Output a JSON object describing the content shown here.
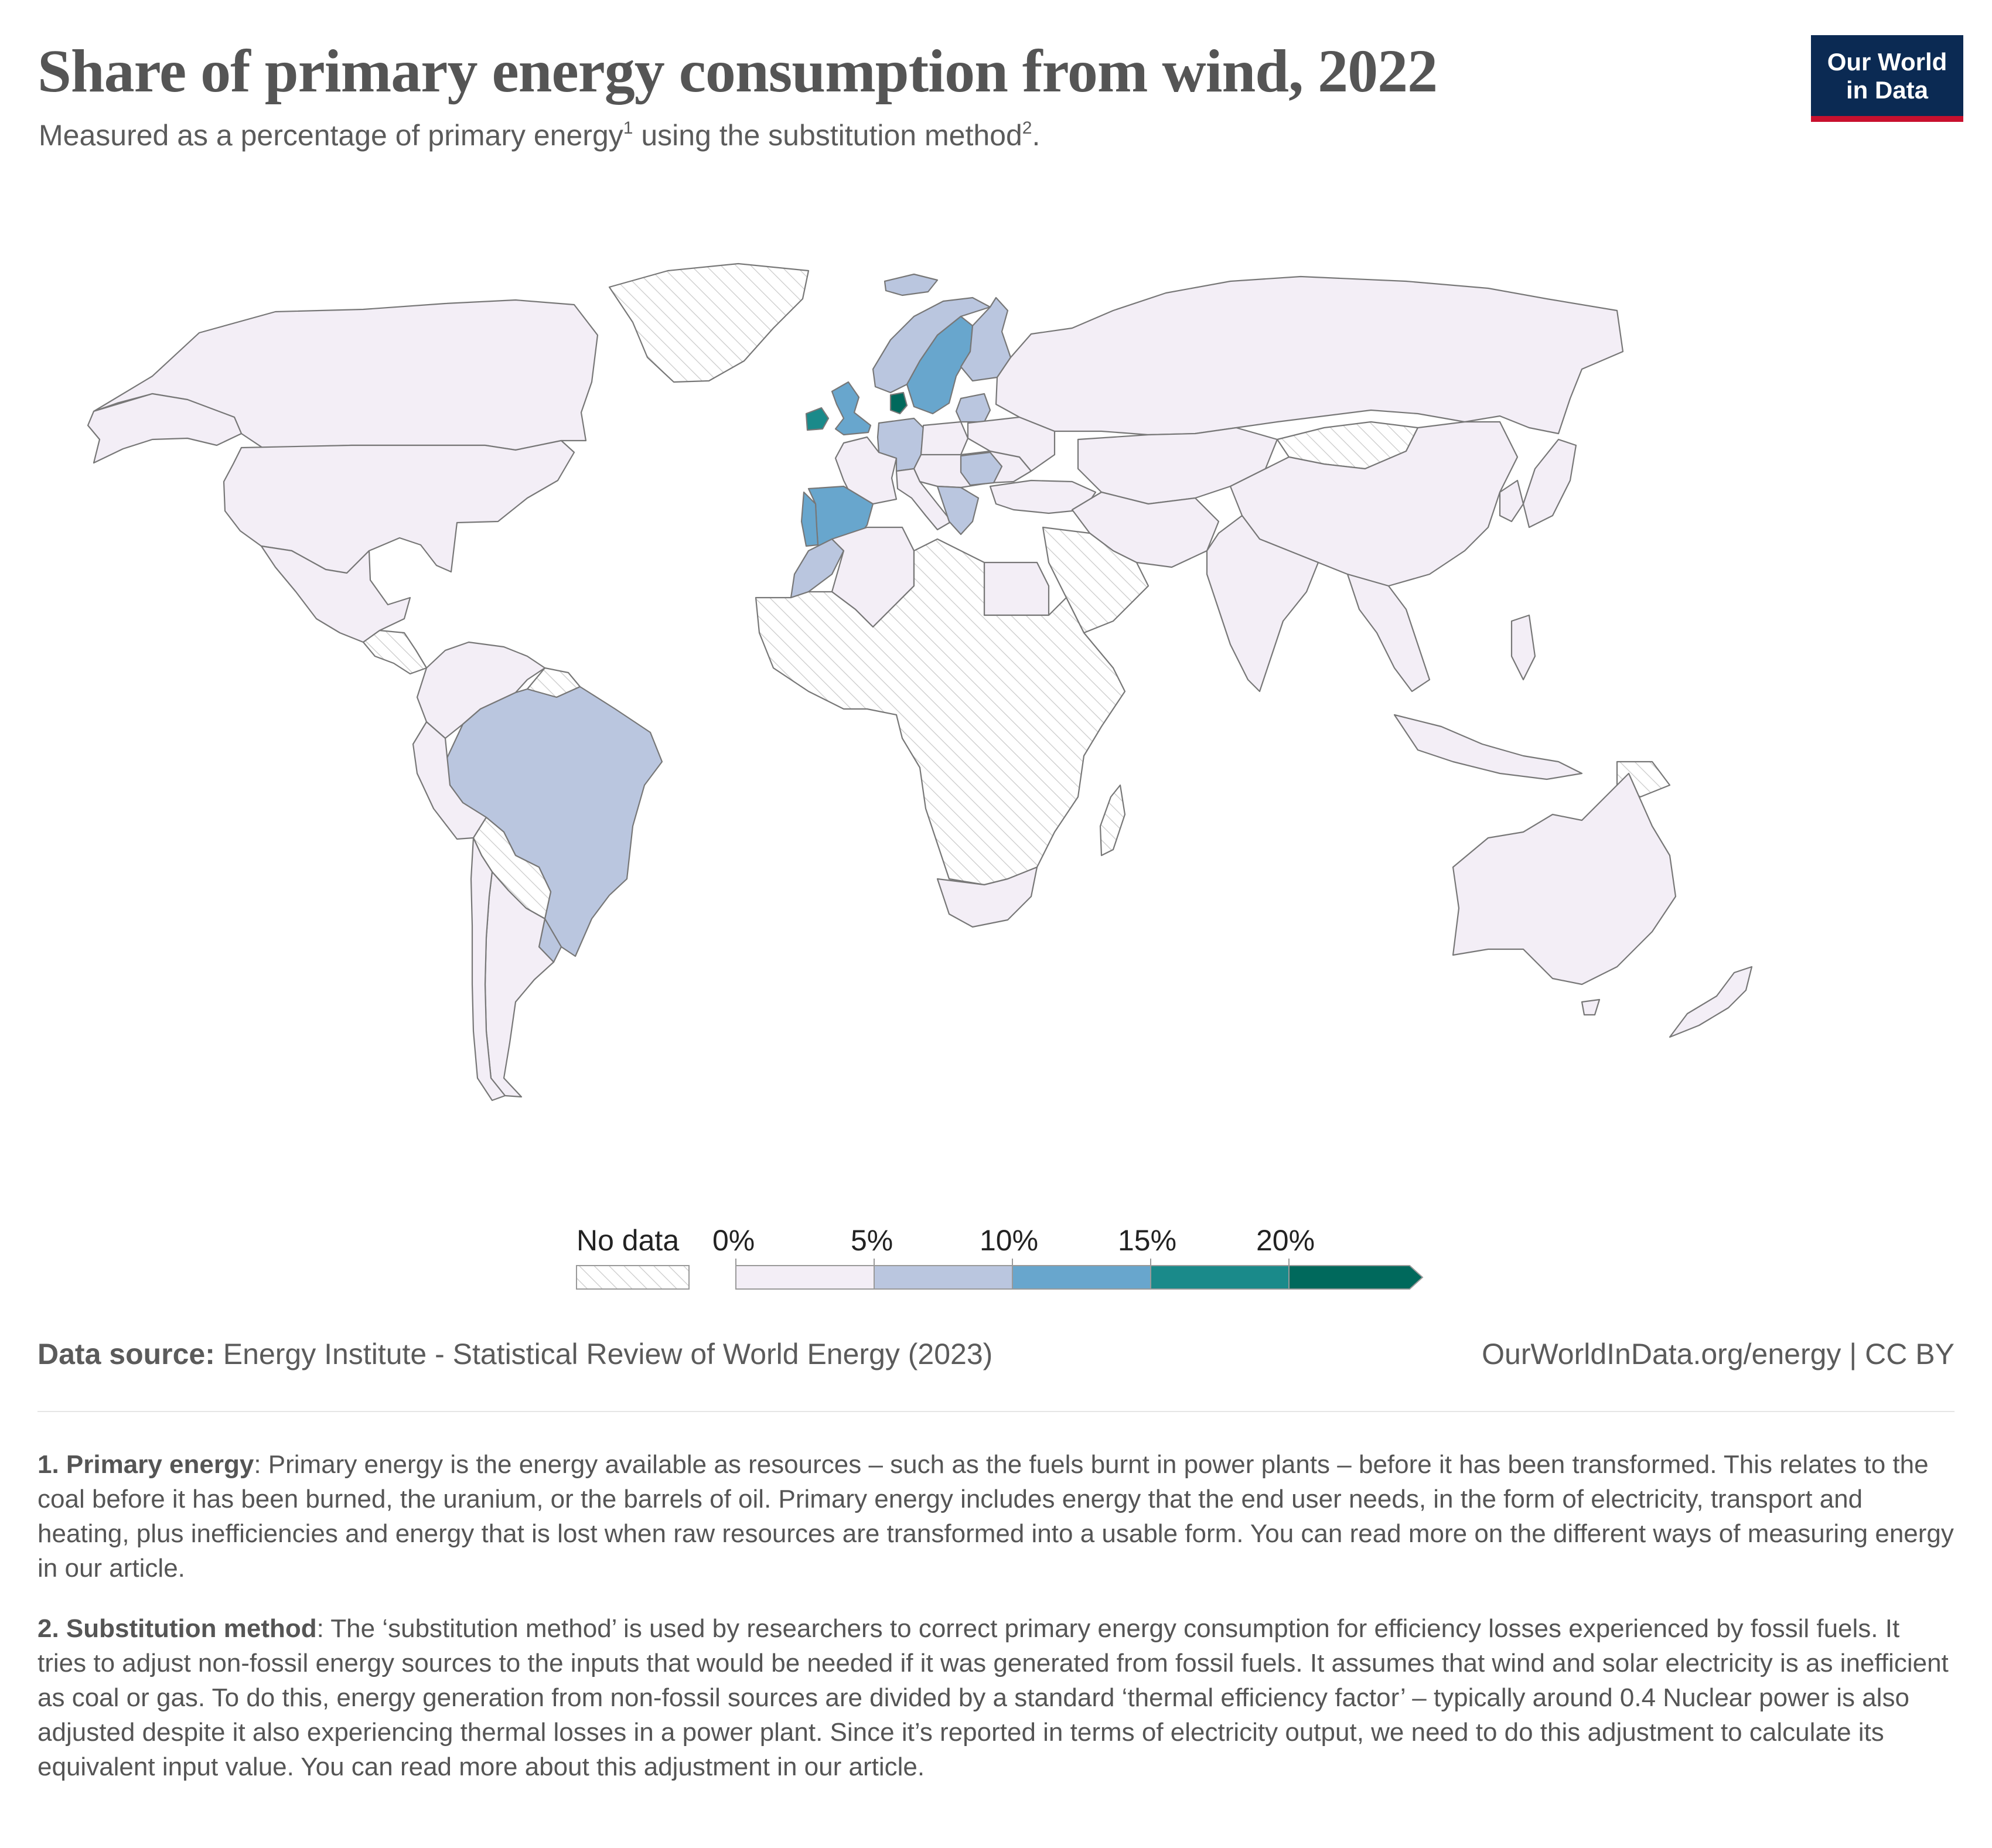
{
  "header": {
    "title": "Share of primary energy consumption from wind, 2022",
    "subtitle_pre": "Measured as a percentage of primary energy",
    "subtitle_sup1": "1",
    "subtitle_mid": " using the substitution method",
    "subtitle_sup2": "2",
    "subtitle_end": ".",
    "logo_line1": "Our World",
    "logo_line2": "in Data"
  },
  "map_data": {
    "colors": {
      "c0": "#f3eef6",
      "c5": "#bac6df",
      "c10": "#68a6cd",
      "c15": "#1a8a8a",
      "c20": "#00695c",
      "nodata_stroke": "#c9c9c9",
      "nodata_bg": "#ffffff"
    },
    "country_shares": [
      {
        "country": "United States",
        "bin": "0-5%"
      },
      {
        "country": "Canada",
        "bin": "0-5%"
      },
      {
        "country": "Mexico",
        "bin": "0-5%"
      },
      {
        "country": "Brazil",
        "bin": "5-10%"
      },
      {
        "country": "Uruguay",
        "bin": "5-10%"
      },
      {
        "country": "Argentina",
        "bin": "0-5%"
      },
      {
        "country": "Chile",
        "bin": "0-5%"
      },
      {
        "country": "Peru",
        "bin": "0-5%"
      },
      {
        "country": "Colombia",
        "bin": "0-5%"
      },
      {
        "country": "Venezuela",
        "bin": "0-5%"
      },
      {
        "country": "Ecuador",
        "bin": "0-5%"
      },
      {
        "country": "Spain",
        "bin": "10-15%"
      },
      {
        "country": "Portugal",
        "bin": "10-15%"
      },
      {
        "country": "United Kingdom",
        "bin": "10-15%"
      },
      {
        "country": "Ireland",
        "bin": "15-20%"
      },
      {
        "country": "Denmark",
        "bin": ">20%"
      },
      {
        "country": "Sweden",
        "bin": "10-15%"
      },
      {
        "country": "Norway",
        "bin": "5-10%"
      },
      {
        "country": "Finland",
        "bin": "5-10%"
      },
      {
        "country": "Germany",
        "bin": "5-10%"
      },
      {
        "country": "Netherlands",
        "bin": "5-10%"
      },
      {
        "country": "Romania",
        "bin": "5-10%"
      },
      {
        "country": "Greece",
        "bin": "5-10%"
      },
      {
        "country": "Croatia",
        "bin": "5-10%"
      },
      {
        "country": "Lithuania",
        "bin": "5-10%"
      },
      {
        "country": "Iceland",
        "bin": "5-10%"
      },
      {
        "country": "Morocco",
        "bin": "5-10%"
      },
      {
        "country": "France",
        "bin": "0-5%"
      },
      {
        "country": "Italy",
        "bin": "0-5%"
      },
      {
        "country": "Poland",
        "bin": "0-5%"
      },
      {
        "country": "Russia",
        "bin": "0-5%"
      },
      {
        "country": "China",
        "bin": "0-5%"
      },
      {
        "country": "India",
        "bin": "0-5%"
      },
      {
        "country": "Australia",
        "bin": "0-5%"
      },
      {
        "country": "New Zealand",
        "bin": "0-5%"
      },
      {
        "country": "Japan",
        "bin": "0-5%"
      },
      {
        "country": "Egypt",
        "bin": "0-5%"
      },
      {
        "country": "Algeria",
        "bin": "0-5%"
      },
      {
        "country": "South Africa",
        "bin": "0-5%"
      },
      {
        "country": "Greenland",
        "bin": "No data"
      },
      {
        "country": "Mongolia",
        "bin": "No data"
      },
      {
        "country": "Africa (most countries)",
        "bin": "No data"
      },
      {
        "country": "Bolivia",
        "bin": "No data"
      },
      {
        "country": "Paraguay",
        "bin": "No data"
      }
    ]
  },
  "legend": {
    "no_data_label": "No data",
    "ticks": [
      "0%",
      "5%",
      "10%",
      "15%",
      "20%"
    ]
  },
  "footer": {
    "source_label": "Data source:",
    "source_text": " Energy Institute - Statistical Review of World Energy (2023)",
    "url": "OurWorldInData.org/energy | CC BY"
  },
  "notes": [
    {
      "term": "1. Primary energy",
      "text": ": Primary energy is the energy available as resources – such as the fuels burnt in power plants – before it has been transformed. This relates to the coal before it has been burned, the uranium, or the barrels of oil. Primary energy includes energy that the end user needs, in the form of electricity, transport and heating, plus inefficiencies and energy that is lost when raw resources are transformed into a usable form. You can read more on the different ways of measuring energy in our article."
    },
    {
      "term": "2. Substitution method",
      "text": ": The ‘substitution method’ is used by researchers to correct primary energy consumption for efficiency losses experienced by fossil fuels. It tries to adjust non-fossil energy sources to the inputs that would be needed if it was generated from fossil fuels. It assumes that wind and solar electricity is as inefficient as coal or gas. To do this, energy generation from non-fossil sources are divided by a standard ‘thermal efficiency factor’ – typically around 0.4 Nuclear power is also adjusted despite it also experiencing thermal losses in a power plant. Since it’s reported in terms of electricity output, we need to do this adjustment to calculate its equivalent input value. You can read more about this adjustment in our article."
    }
  ]
}
